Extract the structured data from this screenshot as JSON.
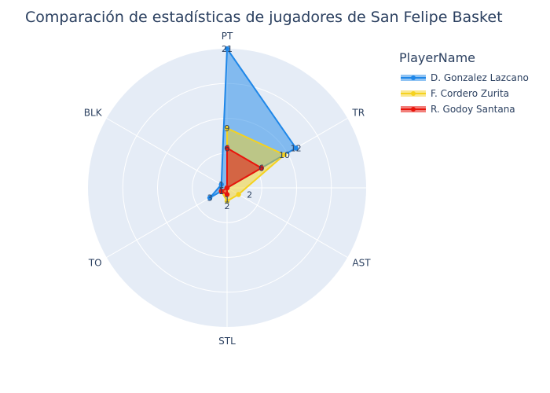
{
  "chart_data": {
    "type": "radar",
    "title": "Comparación de estadísticas de jugadores de San Felipe Basket",
    "axes": [
      "PT",
      "TR",
      "AST",
      "STL",
      "TO",
      "BLK"
    ],
    "radial_range": [
      0,
      21
    ],
    "grid": true,
    "legend_title": "PlayerName",
    "legend_position": "top-right",
    "series": [
      {
        "name": "D. Gonzalez Lazcano",
        "values": [
          21,
          12,
          0,
          0,
          3,
          1
        ],
        "color": "#1f87e8",
        "fill": "rgba(31,135,232,0.5)"
      },
      {
        "name": "F. Cordero Zurita",
        "values": [
          9,
          10,
          2,
          2,
          1,
          0
        ],
        "color": "#f5d21f",
        "fill": "rgba(245,210,31,0.5)"
      },
      {
        "name": "R. Godoy Santana",
        "values": [
          6,
          6,
          0,
          1,
          1,
          0
        ],
        "color": "#e8150c",
        "fill": "rgba(232,21,12,0.55)"
      }
    ],
    "point_labels": [
      [
        {
          "axis": "PT",
          "text": "21"
        },
        {
          "axis": "TR",
          "text": "12"
        },
        {
          "axis": "TO",
          "text": "3"
        },
        {
          "axis": "BLK",
          "text": "1"
        }
      ],
      [
        {
          "axis": "PT",
          "text": "9"
        },
        {
          "axis": "TR",
          "text": "10"
        },
        {
          "axis": "AST",
          "text": "2"
        },
        {
          "axis": "STL",
          "text": "2"
        },
        {
          "axis": "TO",
          "text": "1"
        }
      ],
      [
        {
          "axis": "PT",
          "text": "6"
        },
        {
          "axis": "TR",
          "text": "6"
        },
        {
          "axis": "STL",
          "text": "1"
        },
        {
          "axis": "TO",
          "text": "1"
        }
      ]
    ]
  }
}
